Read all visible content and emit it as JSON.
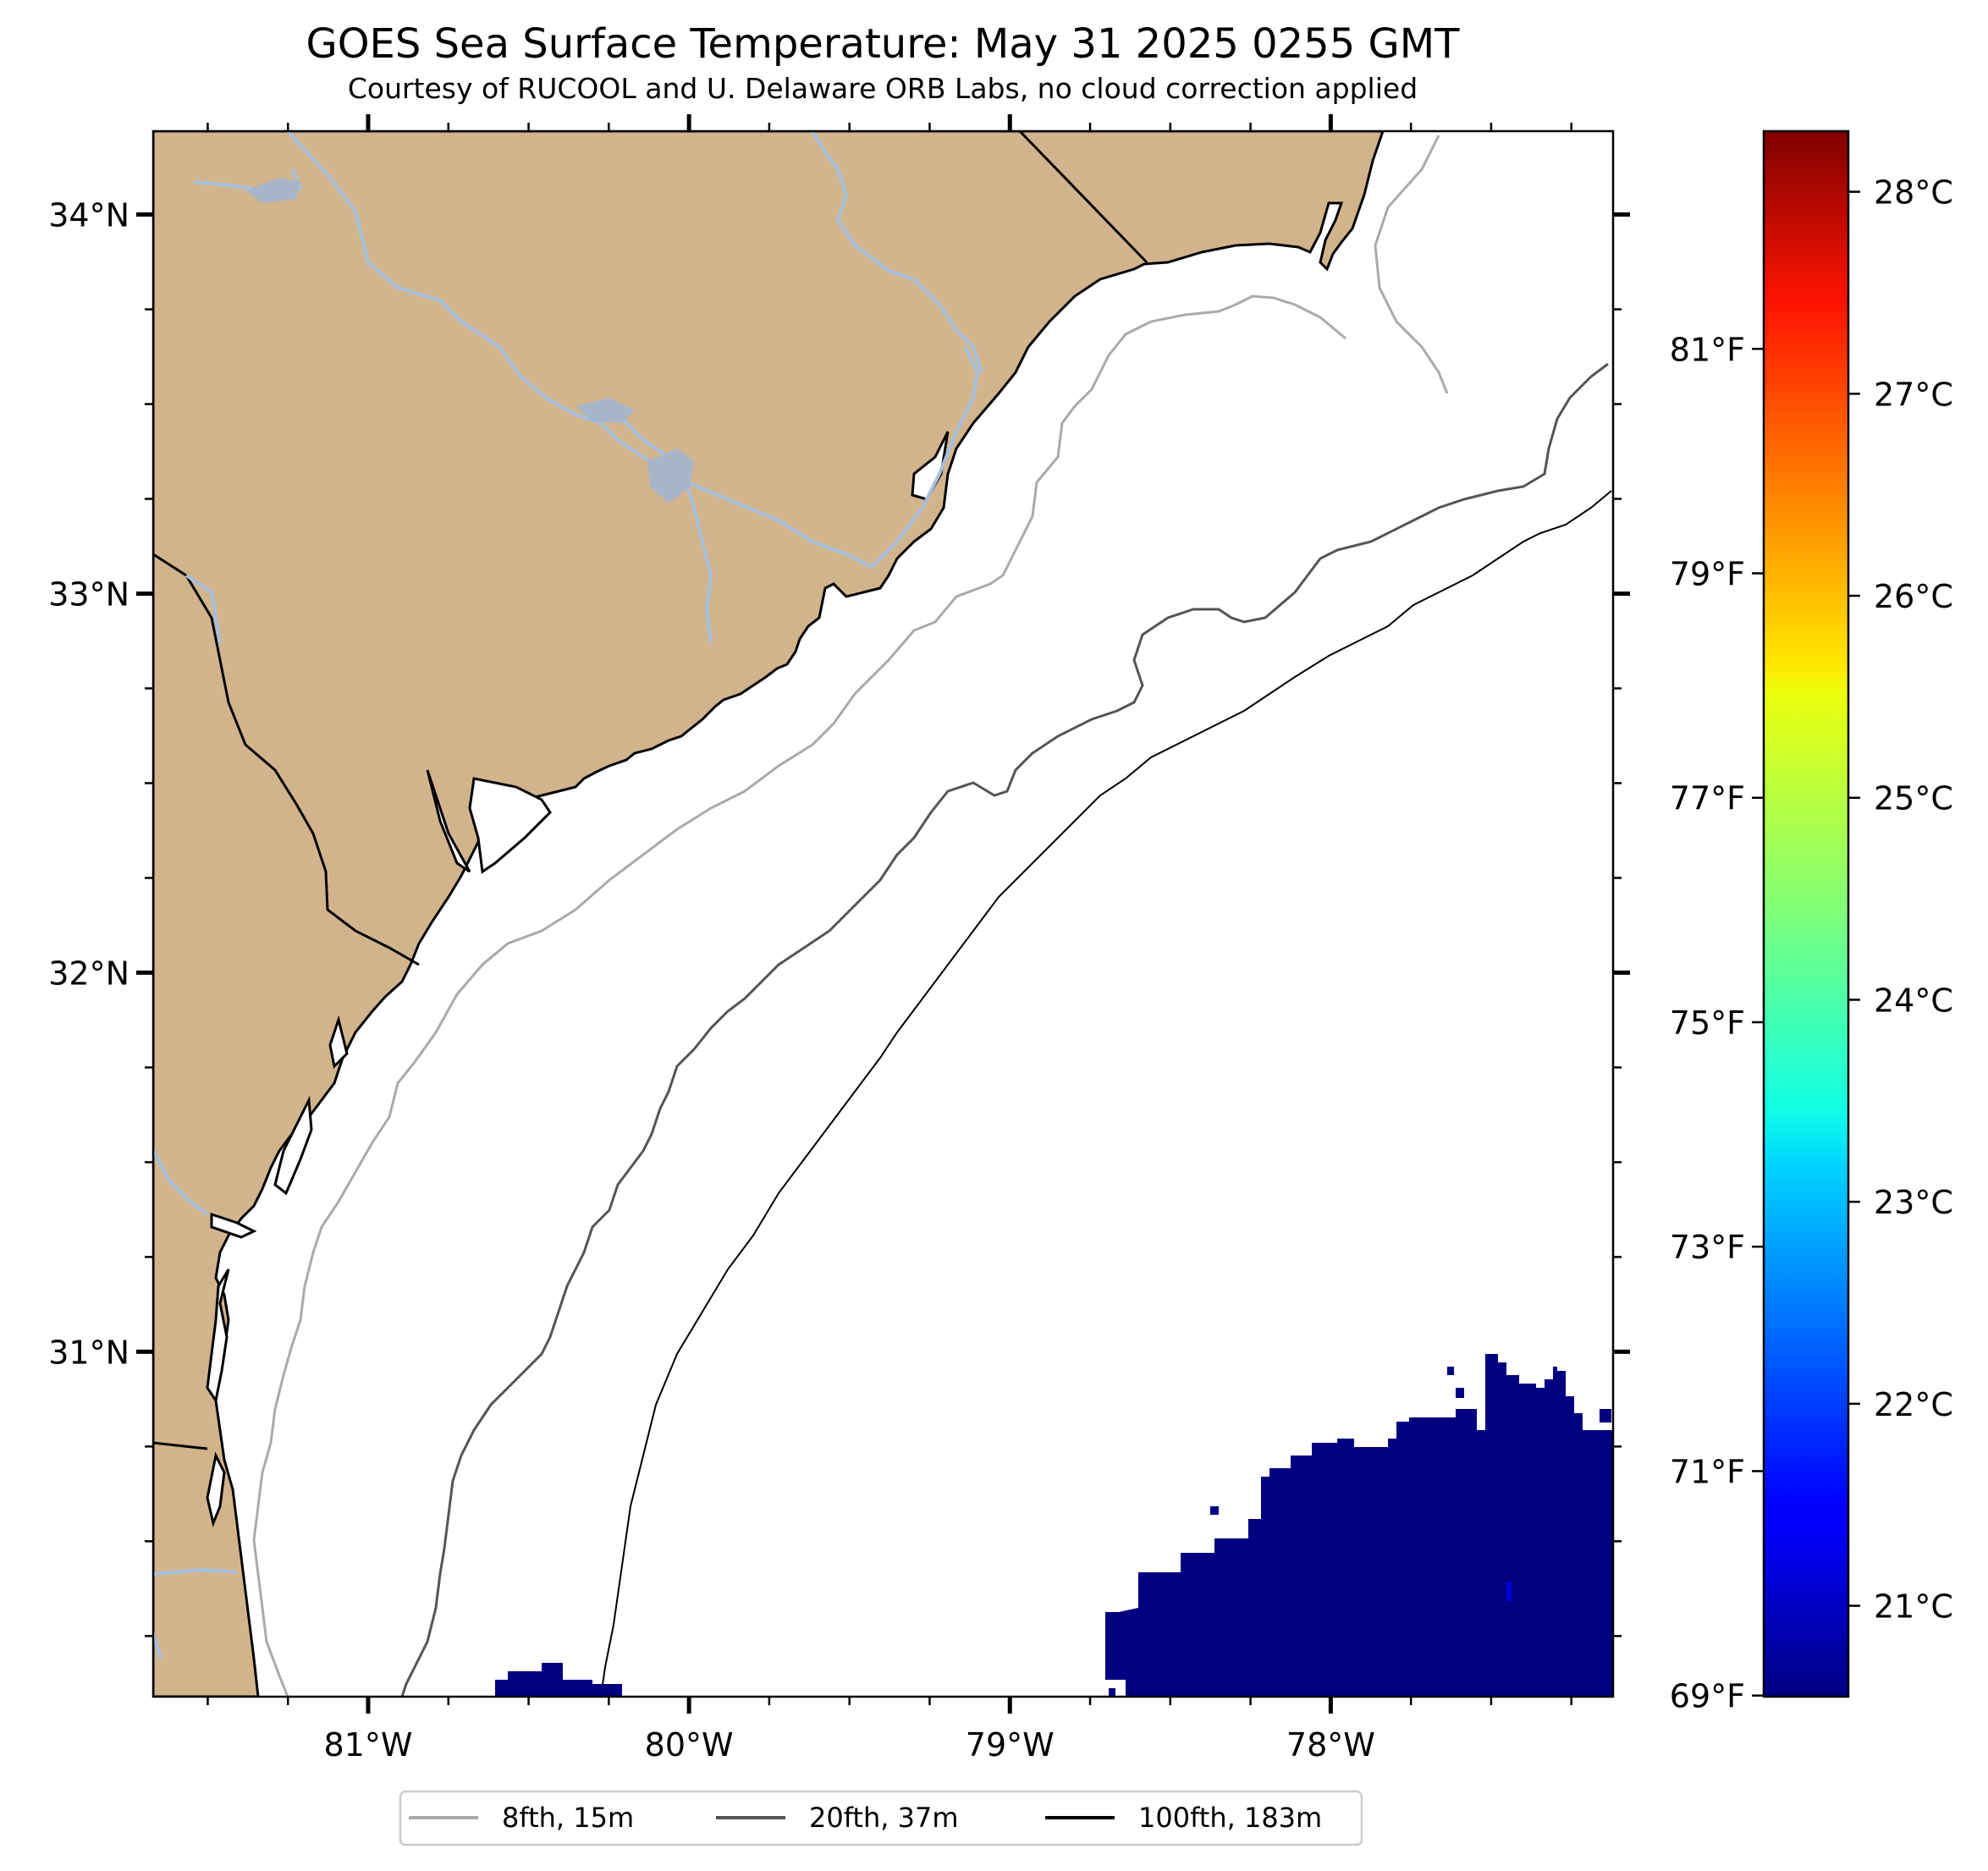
{
  "title": "GOES Sea Surface Temperature: May 31 2025 0255 GMT",
  "subtitle": "Courtesy of RUCOOL and U. Delaware ORB Labs, no cloud correction applied",
  "colors": {
    "land": "#d2b48c",
    "ocean": "#ffffff",
    "river": "#a5bfdd",
    "sst_cold": "#000080",
    "contour_8fth": "#aaaaaa",
    "contour_20fth": "#555555",
    "contour_100fth": "#000000"
  },
  "map": {
    "lon_range": [
      -81.67,
      -77.12
    ],
    "lat_range": [
      30.09,
      34.22
    ],
    "lat_ticks": [
      {
        "value": 34,
        "label": "34°N"
      },
      {
        "value": 33,
        "label": "33°N"
      },
      {
        "value": 32,
        "label": "32°N"
      },
      {
        "value": 31,
        "label": "31°N"
      }
    ],
    "lon_ticks": [
      {
        "value": -81,
        "label": "81°W"
      },
      {
        "value": -80,
        "label": "80°W"
      },
      {
        "value": -79,
        "label": "79°W"
      },
      {
        "value": -78,
        "label": "78°W"
      }
    ]
  },
  "colorbar": {
    "colormap": "jet",
    "range_c": [
      20.55,
      28.3
    ],
    "celsius_ticks": [
      {
        "value": 21,
        "label": "21°C"
      },
      {
        "value": 22,
        "label": "22°C"
      },
      {
        "value": 23,
        "label": "23°C"
      },
      {
        "value": 24,
        "label": "24°C"
      },
      {
        "value": 25,
        "label": "25°C"
      },
      {
        "value": 26,
        "label": "26°C"
      },
      {
        "value": 27,
        "label": "27°C"
      },
      {
        "value": 28,
        "label": "28°C"
      }
    ],
    "fahrenheit_ticks": [
      {
        "value": 69,
        "label": "69°F"
      },
      {
        "value": 71,
        "label": "71°F"
      },
      {
        "value": 73,
        "label": "73°F"
      },
      {
        "value": 75,
        "label": "75°F"
      },
      {
        "value": 77,
        "label": "77°F"
      },
      {
        "value": 79,
        "label": "79°F"
      },
      {
        "value": 81,
        "label": "81°F"
      }
    ]
  },
  "legend": {
    "items": [
      {
        "label": "8fth, 15m",
        "color": "#aaaaaa"
      },
      {
        "label": "20fth, 37m",
        "color": "#555555"
      },
      {
        "label": "100fth, 183m",
        "color": "#000000"
      }
    ]
  }
}
